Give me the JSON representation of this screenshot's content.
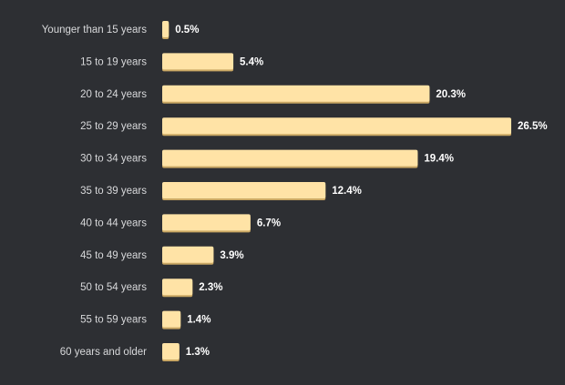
{
  "chart_data": {
    "type": "bar",
    "orientation": "horizontal",
    "categories": [
      "Younger than 15 years",
      "15 to 19 years",
      "20 to 24 years",
      "25 to 29 years",
      "30 to 34 years",
      "35 to 39 years",
      "40 to 44 years",
      "45 to 49 years",
      "50 to 54 years",
      "55 to 59 years",
      "60 years and older"
    ],
    "values": [
      0.5,
      5.4,
      20.3,
      26.5,
      19.4,
      12.4,
      6.7,
      3.9,
      2.3,
      1.4,
      1.3
    ],
    "value_labels": [
      "0.5%",
      "5.4%",
      "20.3%",
      "26.5%",
      "19.4%",
      "12.4%",
      "6.7%",
      "3.9%",
      "2.3%",
      "1.4%",
      "1.3%"
    ],
    "xlim": [
      0,
      26.5
    ],
    "grid": false,
    "colors": {
      "background": "#2d2f33",
      "bar_fill": "#ffe3a6",
      "bar_shadow": "#caa864",
      "category_text": "#d8d9db",
      "value_text": "#ffffff"
    }
  }
}
